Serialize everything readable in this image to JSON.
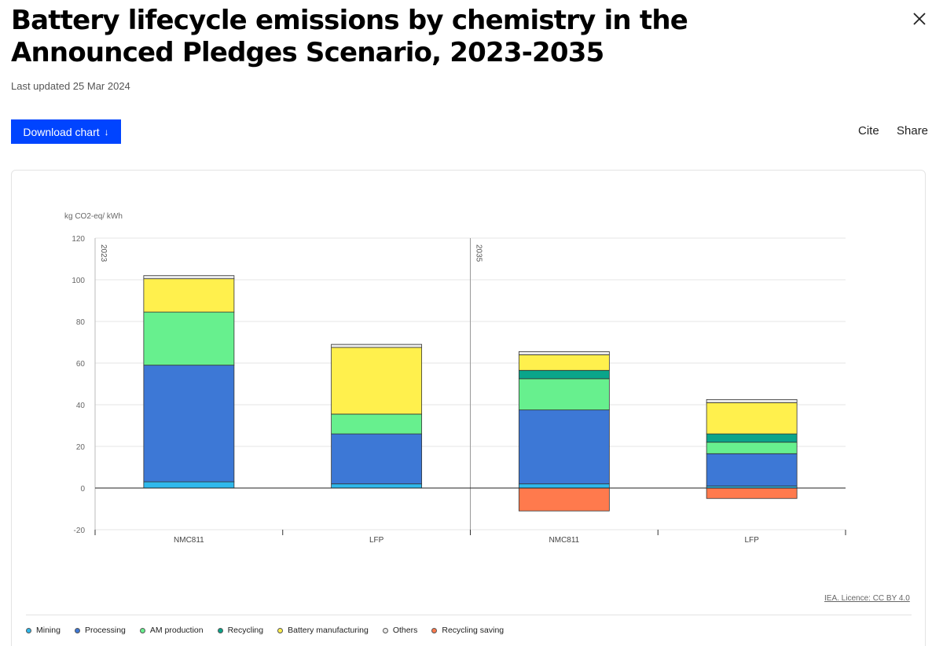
{
  "header": {
    "title": "Battery lifecycle emissions by chemistry in the Announced Pledges Scenario, 2023-2035",
    "updated": "Last updated 25 Mar 2024",
    "download_label": "Download chart",
    "download_arrow": "↓",
    "cite_label": "Cite",
    "share_label": "Share"
  },
  "footer": {
    "licence": "IEA. Licence: CC BY 4.0"
  },
  "chart_data": {
    "type": "bar",
    "stacked": true,
    "ylabel": "kg CO2-eq/ kWh",
    "ylim": [
      -20,
      120
    ],
    "yticks": [
      120,
      100,
      80,
      60,
      40,
      20,
      0,
      -20
    ],
    "grid": true,
    "legend_position": "bottom",
    "groups": [
      "2023",
      "2035"
    ],
    "categories": [
      "NMC811",
      "LFP",
      "NMC811",
      "LFP"
    ],
    "category_group": [
      0,
      0,
      1,
      1
    ],
    "series": [
      {
        "name": "Mining",
        "color": "#2fb9ec",
        "values": [
          3,
          2,
          2,
          1
        ]
      },
      {
        "name": "Processing",
        "color": "#3d78d6",
        "values": [
          56,
          24,
          35.5,
          15.5
        ]
      },
      {
        "name": "AM production",
        "color": "#67f08e",
        "values": [
          25.5,
          9.5,
          15,
          5.5
        ]
      },
      {
        "name": "Recycling",
        "color": "#0aa58a",
        "values": [
          0,
          0,
          4,
          4
        ]
      },
      {
        "name": "Battery manufacturing",
        "color": "#fff04d",
        "values": [
          16,
          32,
          7.5,
          15
        ]
      },
      {
        "name": "Others",
        "color": "#ebebeb",
        "values": [
          1.5,
          1.5,
          1.5,
          1.5
        ]
      },
      {
        "name": "Recycling saving",
        "color": "#ff7a4d",
        "values": [
          0,
          0,
          -11,
          -5
        ]
      }
    ]
  }
}
